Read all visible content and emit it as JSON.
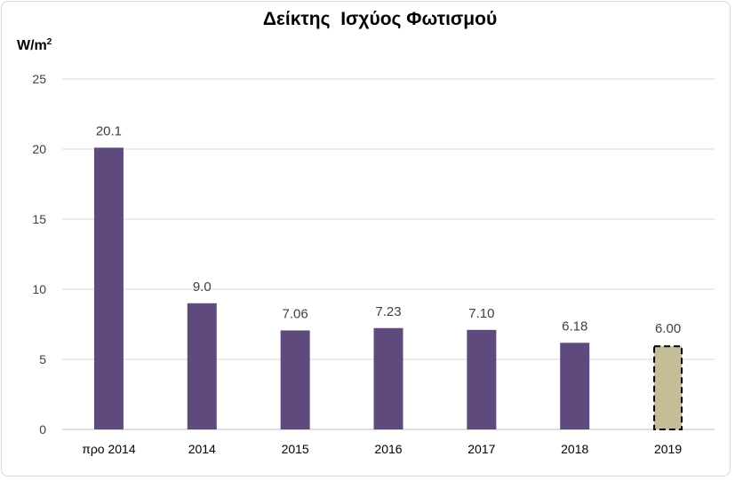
{
  "chart_data": {
    "type": "bar",
    "title": "Δείκτης  Ισχύος Φωτισμού",
    "ylabel_base": "W/m",
    "ylabel_sup": "2",
    "categories": [
      "προ 2014",
      "2014",
      "2015",
      "2016",
      "2017",
      "2018",
      "2019"
    ],
    "values": [
      20.1,
      9.0,
      7.06,
      7.23,
      7.1,
      6.18,
      6.0
    ],
    "data_labels": [
      "20.1",
      "9.0",
      "7.06",
      "7.23",
      "7.10",
      "6.18",
      "6.00"
    ],
    "ylim": [
      0,
      25
    ],
    "yticks": [
      0,
      5,
      10,
      15,
      20,
      25
    ],
    "grid": true,
    "colors": {
      "bar": "#5e4a7c",
      "highlight_bar": "#c4bd97",
      "highlight_border": "#000000",
      "grid": "#d9d9d9",
      "text": "#404040"
    },
    "highlight_index": 6
  }
}
